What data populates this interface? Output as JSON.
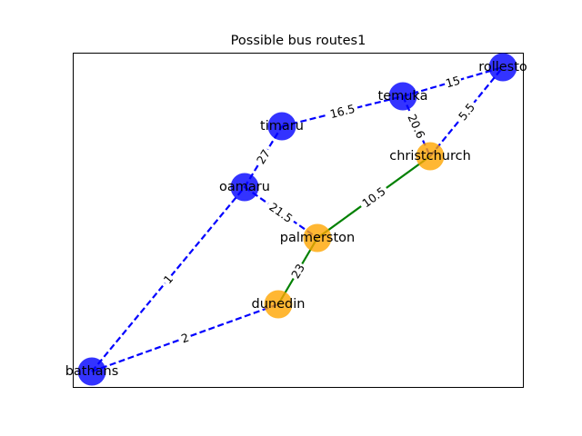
{
  "title": "Possible bus routes1",
  "colors": {
    "blue_node": "#0000ff",
    "orange_node": "#ffa500",
    "blue_edge": "#0000ff",
    "green_edge": "#008000"
  },
  "nodes": [
    {
      "id": "rolleston",
      "label": "rollesto",
      "color": "blue"
    },
    {
      "id": "temuka",
      "label": "temuka",
      "color": "blue"
    },
    {
      "id": "timaru",
      "label": "timaru",
      "color": "blue"
    },
    {
      "id": "oamaru",
      "label": "oamaru",
      "color": "blue"
    },
    {
      "id": "christchurch",
      "label": "christchurch",
      "color": "orange"
    },
    {
      "id": "palmerston",
      "label": "palmerston",
      "color": "orange"
    },
    {
      "id": "dunedin",
      "label": "dunedin",
      "color": "orange"
    },
    {
      "id": "bathans",
      "label": "bathans",
      "color": "blue"
    }
  ],
  "edges": [
    {
      "from": "temuka",
      "to": "rolleston",
      "weight": "15",
      "style": "dashed",
      "color": "blue"
    },
    {
      "from": "timaru",
      "to": "temuka",
      "weight": "16.5",
      "style": "dashed",
      "color": "blue"
    },
    {
      "from": "temuka",
      "to": "christchurch",
      "weight": "20.6",
      "style": "dashed",
      "color": "blue"
    },
    {
      "from": "christchurch",
      "to": "rolleston",
      "weight": "5.5",
      "style": "dashed",
      "color": "blue"
    },
    {
      "from": "oamaru",
      "to": "timaru",
      "weight": "27",
      "style": "dashed",
      "color": "blue"
    },
    {
      "from": "oamaru",
      "to": "palmerston",
      "weight": "21.5",
      "style": "dashed",
      "color": "blue"
    },
    {
      "from": "palmerston",
      "to": "christchurch",
      "weight": "10.5",
      "style": "solid",
      "color": "green"
    },
    {
      "from": "dunedin",
      "to": "palmerston",
      "weight": "23",
      "style": "solid",
      "color": "green"
    },
    {
      "from": "bathans",
      "to": "oamaru",
      "weight": "1",
      "style": "dashed",
      "color": "blue"
    },
    {
      "from": "bathans",
      "to": "dunedin",
      "weight": "2",
      "style": "dashed",
      "color": "blue"
    }
  ]
}
